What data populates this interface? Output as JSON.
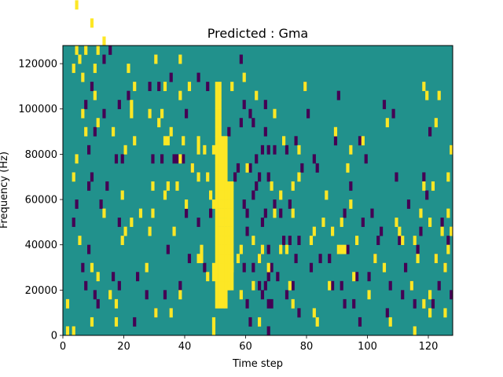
{
  "chart_data": {
    "type": "heatmap",
    "title": "Predicted : Gma",
    "xlabel": "Time step",
    "ylabel": "Frequency (Hz)",
    "xlim": [
      0,
      128
    ],
    "ylim": [
      0,
      128000
    ],
    "x_ticks": [
      0,
      20,
      40,
      60,
      80,
      100,
      120
    ],
    "y_ticks": [
      0,
      20000,
      40000,
      60000,
      80000,
      100000,
      120000
    ],
    "x_tick_labels": [
      "0",
      "20",
      "40",
      "60",
      "80",
      "100",
      "120"
    ],
    "y_tick_labels": [
      "0",
      "20000",
      "40000",
      "60000",
      "80000",
      "100000",
      "120000"
    ],
    "grid": false,
    "colormap": "viridis",
    "background_value": 0,
    "colors": {
      "low": "#440154",
      "mid": "#21918c",
      "high": "#fde725"
    },
    "bin_width_hz": 4000,
    "high_value_cells": [
      [
        1,
        0
      ],
      [
        1,
        3
      ],
      [
        3,
        0
      ],
      [
        3,
        17
      ],
      [
        3,
        29
      ],
      [
        4,
        19
      ],
      [
        4,
        31
      ],
      [
        4,
        36
      ],
      [
        5,
        10
      ],
      [
        5,
        30
      ],
      [
        6,
        28
      ],
      [
        6,
        24
      ],
      [
        7,
        31
      ],
      [
        7,
        22
      ],
      [
        9,
        1
      ],
      [
        9,
        7
      ],
      [
        9,
        34
      ],
      [
        10,
        29
      ],
      [
        10,
        26
      ],
      [
        11,
        6
      ],
      [
        11,
        23
      ],
      [
        11,
        31
      ],
      [
        13,
        13
      ],
      [
        13,
        32
      ],
      [
        15,
        4
      ],
      [
        16,
        22
      ],
      [
        17,
        3
      ],
      [
        17,
        1
      ],
      [
        19,
        10
      ],
      [
        19,
        15
      ],
      [
        20,
        11
      ],
      [
        20,
        20
      ],
      [
        21,
        29
      ],
      [
        22,
        24
      ],
      [
        22,
        25
      ],
      [
        22,
        12
      ],
      [
        23,
        21
      ],
      [
        23,
        27
      ],
      [
        25,
        13
      ],
      [
        27,
        7
      ],
      [
        28,
        11
      ],
      [
        28,
        24
      ],
      [
        29,
        13
      ],
      [
        29,
        16
      ],
      [
        30,
        2
      ],
      [
        30,
        30
      ],
      [
        31,
        23
      ],
      [
        32,
        24
      ],
      [
        33,
        27
      ],
      [
        33,
        15
      ],
      [
        33,
        21
      ],
      [
        34,
        21
      ],
      [
        34,
        16
      ],
      [
        35,
        2
      ],
      [
        35,
        22
      ],
      [
        36,
        11
      ],
      [
        37,
        16
      ],
      [
        38,
        26
      ],
      [
        38,
        19
      ],
      [
        38,
        30
      ],
      [
        38,
        4
      ],
      [
        39,
        21
      ],
      [
        40,
        14
      ],
      [
        41,
        27
      ],
      [
        42,
        18
      ],
      [
        44,
        8
      ],
      [
        44,
        21
      ],
      [
        44,
        20
      ],
      [
        44,
        17
      ],
      [
        45,
        9
      ],
      [
        45,
        8
      ],
      [
        46,
        20
      ],
      [
        47,
        17
      ],
      [
        47,
        6
      ],
      [
        48,
        15
      ],
      [
        49,
        14
      ],
      [
        49,
        20
      ],
      [
        49,
        7
      ],
      [
        49,
        6
      ],
      [
        49,
        1
      ],
      [
        49,
        0
      ],
      [
        50,
        20
      ],
      [
        51,
        19
      ],
      [
        52,
        5
      ],
      [
        52,
        18
      ],
      [
        54,
        13
      ],
      [
        54,
        9
      ],
      [
        55,
        27
      ],
      [
        55,
        7
      ],
      [
        57,
        8
      ],
      [
        58,
        4
      ],
      [
        58,
        9
      ],
      [
        59,
        28
      ],
      [
        60,
        18
      ],
      [
        62,
        5
      ],
      [
        62,
        10
      ],
      [
        63,
        26
      ],
      [
        64,
        1
      ],
      [
        64,
        8
      ],
      [
        65,
        9
      ],
      [
        67,
        7
      ],
      [
        68,
        16
      ],
      [
        69,
        13
      ],
      [
        69,
        24
      ],
      [
        71,
        9
      ],
      [
        71,
        15
      ],
      [
        72,
        21
      ],
      [
        73,
        9
      ],
      [
        74,
        5
      ],
      [
        75,
        3
      ],
      [
        75,
        13
      ],
      [
        75,
        16
      ],
      [
        77,
        17
      ],
      [
        77,
        20
      ],
      [
        79,
        27
      ],
      [
        81,
        10
      ],
      [
        82,
        11
      ],
      [
        82,
        2
      ],
      [
        83,
        1
      ],
      [
        85,
        12
      ],
      [
        86,
        15
      ],
      [
        87,
        5
      ],
      [
        88,
        11
      ],
      [
        89,
        22
      ],
      [
        90,
        9
      ],
      [
        91,
        9
      ],
      [
        91,
        12
      ],
      [
        92,
        9
      ],
      [
        93,
        18
      ],
      [
        94,
        14
      ],
      [
        94,
        20
      ],
      [
        95,
        6
      ],
      [
        96,
        10
      ],
      [
        98,
        21
      ],
      [
        100,
        4
      ],
      [
        102,
        8
      ],
      [
        105,
        7
      ],
      [
        106,
        23
      ],
      [
        107,
        1
      ],
      [
        109,
        12
      ],
      [
        110,
        11
      ],
      [
        111,
        10
      ],
      [
        114,
        5
      ],
      [
        115,
        10
      ],
      [
        115,
        0
      ],
      [
        116,
        8
      ],
      [
        117,
        13
      ],
      [
        118,
        3
      ],
      [
        118,
        16
      ],
      [
        118,
        27
      ],
      [
        119,
        26
      ],
      [
        120,
        2
      ],
      [
        120,
        4
      ],
      [
        120,
        12
      ],
      [
        121,
        16
      ],
      [
        122,
        8
      ],
      [
        122,
        23
      ],
      [
        123,
        26
      ],
      [
        124,
        11
      ],
      [
        125,
        7
      ],
      [
        125,
        2
      ],
      [
        126,
        13
      ],
      [
        126,
        17
      ],
      [
        126,
        9
      ],
      [
        127,
        20
      ],
      [
        127,
        11
      ]
    ],
    "low_value_cells": [
      [
        3,
        12
      ],
      [
        4,
        14
      ],
      [
        6,
        7
      ],
      [
        7,
        5
      ],
      [
        7,
        25
      ],
      [
        8,
        20
      ],
      [
        8,
        16
      ],
      [
        8,
        9
      ],
      [
        9,
        17
      ],
      [
        9,
        27
      ],
      [
        10,
        4
      ],
      [
        10,
        22
      ],
      [
        11,
        3
      ],
      [
        12,
        14
      ],
      [
        13,
        24
      ],
      [
        13,
        30
      ],
      [
        14,
        16
      ],
      [
        15,
        31
      ],
      [
        16,
        6
      ],
      [
        17,
        19
      ],
      [
        18,
        25
      ],
      [
        18,
        12
      ],
      [
        18,
        5
      ],
      [
        19,
        19
      ],
      [
        21,
        26
      ],
      [
        23,
        1
      ],
      [
        24,
        6
      ],
      [
        27,
        4
      ],
      [
        28,
        27
      ],
      [
        29,
        19
      ],
      [
        30,
        2
      ],
      [
        31,
        27
      ],
      [
        32,
        19
      ],
      [
        33,
        4
      ],
      [
        34,
        9
      ],
      [
        35,
        28
      ],
      [
        36,
        19
      ],
      [
        37,
        19
      ],
      [
        38,
        5
      ],
      [
        39,
        19
      ],
      [
        40,
        13
      ],
      [
        40,
        24
      ],
      [
        41,
        8
      ],
      [
        42,
        18
      ],
      [
        44,
        12
      ],
      [
        44,
        28
      ],
      [
        46,
        7
      ],
      [
        47,
        27
      ],
      [
        48,
        13
      ],
      [
        54,
        22
      ],
      [
        56,
        17
      ],
      [
        57,
        18
      ],
      [
        58,
        23
      ],
      [
        58,
        30
      ],
      [
        59,
        7
      ],
      [
        59,
        14
      ],
      [
        59,
        25
      ],
      [
        60,
        11
      ],
      [
        60,
        13
      ],
      [
        60,
        3
      ],
      [
        61,
        24
      ],
      [
        61,
        18
      ],
      [
        61,
        1
      ],
      [
        62,
        7
      ],
      [
        62,
        23
      ],
      [
        62,
        15
      ],
      [
        63,
        16
      ],
      [
        63,
        19
      ],
      [
        64,
        5
      ],
      [
        64,
        8
      ],
      [
        64,
        17
      ],
      [
        65,
        20
      ],
      [
        65,
        12
      ],
      [
        65,
        4
      ],
      [
        66,
        13
      ],
      [
        66,
        5
      ],
      [
        66,
        25
      ],
      [
        66,
        22
      ],
      [
        67,
        20
      ],
      [
        67,
        17
      ],
      [
        67,
        0
      ],
      [
        67,
        3
      ],
      [
        67,
        6
      ],
      [
        67,
        9
      ],
      [
        68,
        7
      ],
      [
        68,
        3
      ],
      [
        69,
        20
      ],
      [
        69,
        14
      ],
      [
        70,
        6
      ],
      [
        71,
        13
      ],
      [
        72,
        10
      ],
      [
        73,
        20
      ],
      [
        73,
        4
      ],
      [
        74,
        14
      ],
      [
        74,
        10
      ],
      [
        75,
        5
      ],
      [
        76,
        21
      ],
      [
        76,
        8
      ],
      [
        77,
        10
      ],
      [
        77,
        2
      ],
      [
        78,
        18
      ],
      [
        79,
        27
      ],
      [
        80,
        24
      ],
      [
        81,
        7
      ],
      [
        82,
        19
      ],
      [
        83,
        18
      ],
      [
        84,
        8
      ],
      [
        87,
        8
      ],
      [
        88,
        5
      ],
      [
        89,
        21
      ],
      [
        90,
        26
      ],
      [
        91,
        5
      ],
      [
        92,
        13
      ],
      [
        92,
        3
      ],
      [
        93,
        9
      ],
      [
        94,
        16
      ],
      [
        95,
        3
      ],
      [
        96,
        6
      ],
      [
        97,
        21
      ],
      [
        97,
        1
      ],
      [
        98,
        12
      ],
      [
        99,
        19
      ],
      [
        100,
        6
      ],
      [
        101,
        13
      ],
      [
        102,
        8
      ],
      [
        103,
        10
      ],
      [
        104,
        11
      ],
      [
        105,
        25
      ],
      [
        106,
        2
      ],
      [
        107,
        5
      ],
      [
        108,
        24
      ],
      [
        109,
        17
      ],
      [
        110,
        10
      ],
      [
        111,
        4
      ],
      [
        112,
        7
      ],
      [
        113,
        14
      ],
      [
        114,
        5
      ],
      [
        115,
        3
      ],
      [
        116,
        9
      ],
      [
        117,
        11
      ],
      [
        118,
        17
      ],
      [
        119,
        15
      ],
      [
        120,
        22
      ],
      [
        121,
        3
      ],
      [
        122,
        8
      ],
      [
        123,
        5
      ],
      [
        124,
        12
      ],
      [
        125,
        7
      ],
      [
        126,
        10
      ],
      [
        127,
        4
      ]
    ],
    "high_value_band": {
      "segments": [
        {
          "x_from": 50,
          "x_to": 52,
          "y_from_bin": 3,
          "y_to_bin": 27
        },
        {
          "x_from": 52,
          "x_to": 54,
          "y_from_bin": 3,
          "y_to_bin": 21
        },
        {
          "x_from": 54,
          "x_to": 56,
          "y_from_bin": 5,
          "y_to_bin": 16
        }
      ]
    }
  }
}
